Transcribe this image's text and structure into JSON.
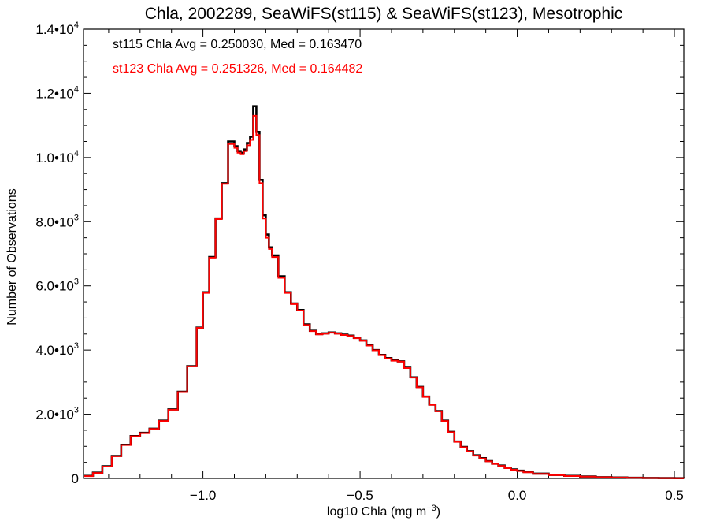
{
  "chart_data": {
    "type": "line",
    "title": "Chla, 2002289, SeaWiFS(st115) & SeaWiFS(st123), Mesotrophic",
    "xlabel": "log10 Chla (mg m⁻³)",
    "ylabel": "Number of Observations",
    "xlim": [
      -1.38,
      0.53
    ],
    "ylim": [
      0,
      14000
    ],
    "grid": false,
    "x_ticks": [
      {
        "value": -1.0,
        "label": "−1.0"
      },
      {
        "value": -0.5,
        "label": "−0.5"
      },
      {
        "value": 0.0,
        "label": "0.0"
      },
      {
        "value": 0.5,
        "label": "0.5"
      }
    ],
    "y_ticks": [
      {
        "value": 0,
        "mantissa": "0",
        "exp": ""
      },
      {
        "value": 2000,
        "mantissa": "2.0•10",
        "exp": "3"
      },
      {
        "value": 4000,
        "mantissa": "4.0•10",
        "exp": "3"
      },
      {
        "value": 6000,
        "mantissa": "6.0•10",
        "exp": "3"
      },
      {
        "value": 8000,
        "mantissa": "8.0•10",
        "exp": "3"
      },
      {
        "value": 10000,
        "mantissa": "1.0•10",
        "exp": "4"
      },
      {
        "value": 12000,
        "mantissa": "1.2•10",
        "exp": "4"
      },
      {
        "value": 14000,
        "mantissa": "1.4•10",
        "exp": "4"
      }
    ],
    "annotations": [
      {
        "text": "st115 Chla Avg = 0.250030, Med = 0.163470",
        "color": "#000000"
      },
      {
        "text": "st123 Chla Avg = 0.251326, Med = 0.164482",
        "color": "#ff0000"
      }
    ],
    "series": [
      {
        "name": "st115",
        "color": "#000000",
        "x": [
          -1.38,
          -1.35,
          -1.32,
          -1.29,
          -1.26,
          -1.23,
          -1.2,
          -1.17,
          -1.14,
          -1.11,
          -1.08,
          -1.05,
          -1.02,
          -1.0,
          -0.98,
          -0.96,
          -0.94,
          -0.92,
          -0.9,
          -0.89,
          -0.88,
          -0.87,
          -0.86,
          -0.85,
          -0.84,
          -0.83,
          -0.82,
          -0.81,
          -0.8,
          -0.79,
          -0.78,
          -0.76,
          -0.74,
          -0.72,
          -0.7,
          -0.68,
          -0.66,
          -0.64,
          -0.62,
          -0.6,
          -0.58,
          -0.56,
          -0.54,
          -0.52,
          -0.5,
          -0.48,
          -0.46,
          -0.44,
          -0.42,
          -0.4,
          -0.38,
          -0.36,
          -0.34,
          -0.32,
          -0.3,
          -0.28,
          -0.26,
          -0.24,
          -0.22,
          -0.2,
          -0.18,
          -0.16,
          -0.14,
          -0.12,
          -0.1,
          -0.08,
          -0.06,
          -0.04,
          -0.02,
          0.0,
          0.02,
          0.05,
          0.1,
          0.15,
          0.2,
          0.25,
          0.3,
          0.35,
          0.4,
          0.45,
          0.5,
          0.53
        ],
        "y": [
          80,
          180,
          380,
          700,
          1050,
          1320,
          1420,
          1550,
          1800,
          2150,
          2700,
          3500,
          4700,
          5800,
          6900,
          8100,
          9200,
          10500,
          10350,
          10200,
          10150,
          10250,
          10450,
          10650,
          11600,
          10800,
          9300,
          8200,
          7600,
          7200,
          6950,
          6300,
          5800,
          5450,
          5250,
          4800,
          4600,
          4500,
          4520,
          4550,
          4520,
          4480,
          4450,
          4380,
          4300,
          4150,
          4000,
          3850,
          3750,
          3680,
          3650,
          3450,
          3150,
          2850,
          2550,
          2300,
          2100,
          1800,
          1450,
          1150,
          980,
          850,
          720,
          630,
          540,
          460,
          400,
          330,
          280,
          240,
          200,
          150,
          110,
          80,
          60,
          40,
          30,
          20,
          15,
          10,
          8,
          6
        ]
      },
      {
        "name": "st123",
        "color": "#ff0000",
        "x": [
          -1.38,
          -1.35,
          -1.32,
          -1.29,
          -1.26,
          -1.23,
          -1.2,
          -1.17,
          -1.14,
          -1.11,
          -1.08,
          -1.05,
          -1.02,
          -1.0,
          -0.98,
          -0.96,
          -0.94,
          -0.92,
          -0.9,
          -0.89,
          -0.88,
          -0.87,
          -0.86,
          -0.85,
          -0.84,
          -0.83,
          -0.82,
          -0.81,
          -0.8,
          -0.79,
          -0.78,
          -0.76,
          -0.74,
          -0.72,
          -0.7,
          -0.68,
          -0.66,
          -0.64,
          -0.62,
          -0.6,
          -0.58,
          -0.56,
          -0.54,
          -0.52,
          -0.5,
          -0.48,
          -0.46,
          -0.44,
          -0.42,
          -0.4,
          -0.38,
          -0.36,
          -0.34,
          -0.32,
          -0.3,
          -0.28,
          -0.26,
          -0.24,
          -0.22,
          -0.2,
          -0.18,
          -0.16,
          -0.14,
          -0.12,
          -0.1,
          -0.08,
          -0.06,
          -0.04,
          -0.02,
          0.0,
          0.02,
          0.05,
          0.1,
          0.15,
          0.2,
          0.25,
          0.3,
          0.35,
          0.4,
          0.45,
          0.5,
          0.53
        ],
        "y": [
          70,
          170,
          370,
          690,
          1040,
          1310,
          1410,
          1540,
          1790,
          2140,
          2690,
          3490,
          4690,
          5780,
          6880,
          8080,
          9180,
          10420,
          10300,
          10150,
          10100,
          10200,
          10380,
          10550,
          11300,
          10700,
          9200,
          8100,
          7500,
          7150,
          6900,
          6250,
          5780,
          5430,
          5230,
          4780,
          4590,
          4490,
          4510,
          4540,
          4510,
          4470,
          4440,
          4370,
          4290,
          4140,
          3990,
          3840,
          3740,
          3670,
          3640,
          3440,
          3140,
          2840,
          2540,
          2290,
          2090,
          1790,
          1440,
          1140,
          970,
          840,
          710,
          620,
          530,
          450,
          390,
          320,
          270,
          230,
          190,
          140,
          100,
          75,
          55,
          38,
          28,
          18,
          13,
          9,
          7,
          5
        ]
      }
    ]
  }
}
